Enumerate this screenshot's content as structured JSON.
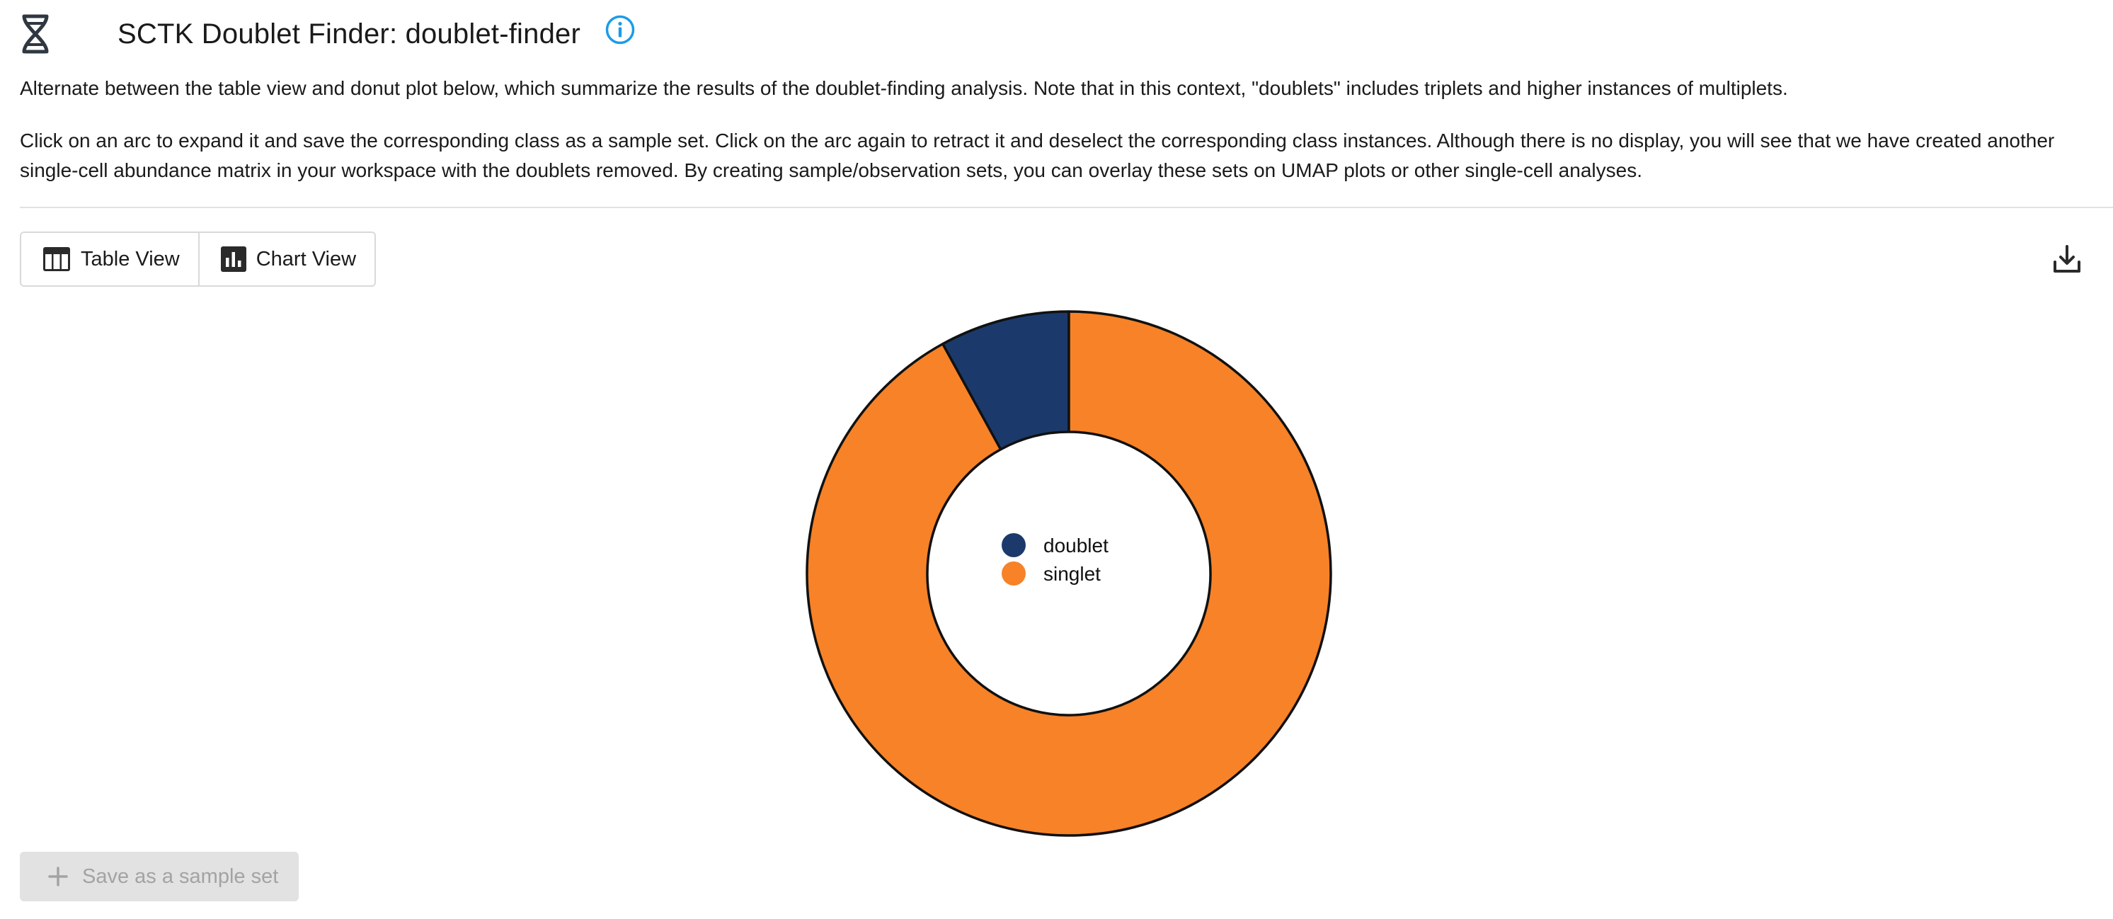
{
  "header": {
    "title": "SCTK Doublet Finder: doublet-finder",
    "icon": "dna-icon",
    "info_icon": "info-icon",
    "info_color": "#1c9ce6"
  },
  "description": {
    "paragraph1": "Alternate between the table view and donut plot below, which summarize the results of the doublet-finding analysis. Note that in this context, \"doublets\" includes triplets and higher instances of multiplets.",
    "paragraph2": "Click on an arc to expand it and save the corresponding class as a sample set. Click on the arc again to retract it and deselect the corresponding class instances. Although there is no display, you will see that we have created another single-cell abundance matrix in your workspace with the doublets removed. By creating sample/observation sets, you can overlay these sets on UMAP plots or other single-cell analyses."
  },
  "view_toggle": {
    "table_label": "Table View",
    "table_icon": "table-icon",
    "chart_label": "Chart View",
    "chart_icon": "bar-chart-icon"
  },
  "toolbar": {
    "download_icon": "download-icon"
  },
  "chart_data": {
    "type": "pie",
    "variant": "donut",
    "labels": [
      "doublet",
      "singlet"
    ],
    "values": [
      8,
      92
    ],
    "colors": [
      "#1b3a6b",
      "#f78227"
    ],
    "legend_position": "center"
  },
  "actions": {
    "save_label": "Save as a sample set",
    "save_icon": "plus-icon",
    "save_enabled": false
  }
}
